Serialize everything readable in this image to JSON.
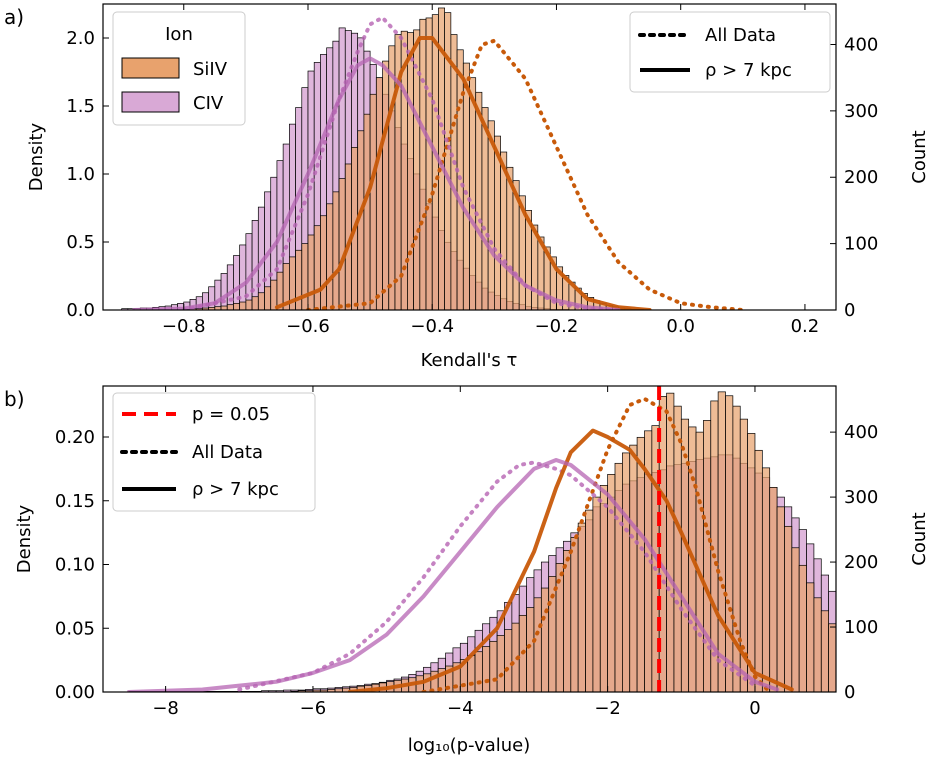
{
  "colors": {
    "siiv_fill": "#e8a26d",
    "siiv_line": "#c85a0a",
    "civ_fill": "#d9a9d6",
    "civ_line": "#b664b3",
    "overlap_fill": "#c9795a",
    "threshold": "#ff0000"
  },
  "chart_data": [
    {
      "type": "histogram",
      "panel_label": "a)",
      "xlabel": "Kendall's τ",
      "ylabel": "Density",
      "ylabel_right": "Count",
      "xlim": [
        -0.93,
        0.25
      ],
      "ylim": [
        0,
        2.25
      ],
      "ylim_right": [
        0,
        461
      ],
      "xticks": [
        "−0.8",
        "−0.6",
        "−0.4",
        "−0.2",
        "0.0",
        "0.2"
      ],
      "yticks": [
        "0.0",
        "0.5",
        "1.0",
        "1.5",
        "2.0"
      ],
      "yticks_right": [
        "0",
        "100",
        "200",
        "300",
        "400"
      ],
      "legend_ion": {
        "title": "Ion",
        "entries": [
          "SiIV",
          "CIV"
        ],
        "position": "top-left"
      },
      "legend_style": {
        "entries": [
          "All Data",
          "ρ > 7 kpc"
        ],
        "position": "top-right"
      },
      "series": [
        {
          "name": "SiIV",
          "kind": "histogram",
          "bin_start": -0.8,
          "bin_width": 0.01,
          "counts": [
            1,
            2,
            2,
            3,
            4,
            5,
            6,
            8,
            10,
            12,
            15,
            20,
            26,
            35,
            45,
            57,
            70,
            80,
            90,
            100,
            113,
            127,
            142,
            160,
            178,
            198,
            220,
            245,
            270,
            295,
            325,
            350,
            375,
            398,
            415,
            420,
            418,
            422,
            438,
            440,
            445,
            455,
            448,
            415,
            392,
            372,
            350,
            328,
            305,
            285,
            262,
            238,
            215,
            195,
            172,
            150,
            128,
            110,
            95,
            80,
            65,
            52,
            42,
            33,
            25,
            19,
            14,
            10,
            7,
            5,
            3,
            2,
            1,
            1,
            0
          ]
        },
        {
          "name": "CIV",
          "kind": "histogram",
          "bin_start": -0.9,
          "bin_width": 0.01,
          "counts": [
            2,
            2,
            2,
            3,
            3,
            4,
            5,
            6,
            8,
            10,
            12,
            16,
            20,
            26,
            35,
            45,
            55,
            68,
            82,
            98,
            115,
            135,
            155,
            178,
            200,
            225,
            250,
            280,
            305,
            335,
            360,
            373,
            385,
            395,
            405,
            425,
            421,
            417,
            410,
            390,
            370,
            350,
            325,
            300,
            275,
            250,
            228,
            205,
            182,
            160,
            140,
            120,
            102,
            88,
            75,
            63,
            52,
            42,
            33,
            27,
            22,
            17,
            13,
            10,
            8,
            5,
            4,
            3,
            2,
            1,
            1,
            1
          ]
        },
        {
          "name": "SiIV All Data",
          "kind": "kde",
          "style": "dotted",
          "x": [
            -0.6,
            -0.5,
            -0.45,
            -0.4,
            -0.35,
            -0.32,
            -0.3,
            -0.25,
            -0.2,
            -0.15,
            -0.1,
            -0.05,
            0.0,
            0.05,
            0.1
          ],
          "y": [
            0.0,
            0.05,
            0.25,
            0.85,
            1.6,
            1.95,
            1.98,
            1.7,
            1.2,
            0.7,
            0.35,
            0.15,
            0.05,
            0.02,
            0.0
          ]
        },
        {
          "name": "CIV All Data",
          "kind": "kde",
          "style": "dotted",
          "x": [
            -0.8,
            -0.7,
            -0.65,
            -0.6,
            -0.55,
            -0.52,
            -0.5,
            -0.48,
            -0.45,
            -0.4,
            -0.35,
            -0.3,
            -0.25,
            -0.2,
            -0.15,
            -0.1
          ],
          "y": [
            0.0,
            0.1,
            0.3,
            0.85,
            1.55,
            1.9,
            2.1,
            2.15,
            2.0,
            1.55,
            0.9,
            0.45,
            0.18,
            0.05,
            0.01,
            0.0
          ]
        },
        {
          "name": "SiIV ρ > 7 kpc",
          "kind": "kde",
          "style": "solid",
          "x": [
            -0.65,
            -0.58,
            -0.55,
            -0.5,
            -0.45,
            -0.42,
            -0.4,
            -0.35,
            -0.3,
            -0.25,
            -0.2,
            -0.15,
            -0.1,
            -0.05
          ],
          "y": [
            0.02,
            0.15,
            0.3,
            0.9,
            1.75,
            2.0,
            2.0,
            1.7,
            1.2,
            0.7,
            0.3,
            0.08,
            0.02,
            0.0
          ]
        },
        {
          "name": "CIV ρ > 7 kpc",
          "kind": "kde",
          "style": "solid",
          "x": [
            -0.88,
            -0.8,
            -0.75,
            -0.7,
            -0.65,
            -0.6,
            -0.55,
            -0.52,
            -0.5,
            -0.48,
            -0.45,
            -0.4,
            -0.35,
            -0.3,
            -0.25,
            -0.2,
            -0.15,
            -0.1
          ],
          "y": [
            0.0,
            0.01,
            0.05,
            0.2,
            0.5,
            1.0,
            1.55,
            1.8,
            1.85,
            1.8,
            1.65,
            1.2,
            0.75,
            0.4,
            0.18,
            0.07,
            0.02,
            0.0
          ]
        }
      ]
    },
    {
      "type": "histogram",
      "panel_label": "b)",
      "xlabel": "log₁₀(p-value)",
      "ylabel": "Density",
      "ylabel_right": "Count",
      "xlim": [
        -8.85,
        1.1
      ],
      "ylim": [
        0,
        0.24
      ],
      "ylim_right": [
        0,
        471
      ],
      "xticks": [
        "−8",
        "−6",
        "−4",
        "−2",
        "0"
      ],
      "yticks": [
        "0.00",
        "0.05",
        "0.10",
        "0.15",
        "0.20"
      ],
      "yticks_right": [
        "0",
        "100",
        "200",
        "300",
        "400"
      ],
      "threshold": {
        "x": -1.30103,
        "style": "dashed"
      },
      "legend_style": {
        "entries": [
          "p = 0.05",
          "All Data",
          "ρ > 7 kpc"
        ],
        "position": "top-left"
      },
      "series": [
        {
          "name": "SiIV",
          "kind": "histogram",
          "bin_start": -6.3,
          "bin_width": 0.1,
          "counts": [
            1,
            2,
            2,
            3,
            3,
            4,
            5,
            6,
            7,
            9,
            10,
            12,
            14,
            16,
            18,
            20,
            22,
            25,
            28,
            32,
            36,
            40,
            45,
            50,
            56,
            62,
            70,
            78,
            87,
            96,
            106,
            118,
            130,
            145,
            160,
            178,
            198,
            218,
            238,
            260,
            280,
            300,
            318,
            335,
            352,
            368,
            380,
            392,
            402,
            410,
            455,
            460,
            440,
            420,
            408,
            400,
            418,
            448,
            462,
            456,
            440,
            420,
            398,
            372,
            345,
            315,
            285,
            255,
            222,
            195,
            168,
            145,
            125,
            105,
            85,
            65,
            45,
            28,
            16,
            10,
            6,
            3,
            2,
            1,
            1,
            0
          ]
        },
        {
          "name": "CIV",
          "kind": "histogram",
          "bin_start": -8.5,
          "bin_width": 0.1,
          "counts": [
            1,
            1,
            1,
            1,
            1,
            1,
            1,
            1,
            1,
            1,
            1,
            1,
            1,
            1,
            1,
            1,
            1,
            1,
            2,
            2,
            2,
            3,
            3,
            3,
            4,
            5,
            5,
            6,
            7,
            8,
            9,
            10,
            12,
            13,
            15,
            18,
            20,
            23,
            27,
            32,
            38,
            45,
            52,
            60,
            68,
            75,
            85,
            95,
            105,
            115,
            125,
            138,
            150,
            163,
            176,
            188,
            200,
            210,
            222,
            232,
            245,
            255,
            265,
            285,
            290,
            300,
            310,
            320,
            325,
            330,
            335,
            338,
            342,
            348,
            350,
            352,
            355,
            358,
            360,
            362,
            365,
            365,
            360,
            352,
            345,
            337,
            330,
            315,
            300,
            285,
            268,
            250,
            228,
            205,
            180,
            155,
            130,
            110,
            95,
            80,
            65,
            52,
            42,
            33,
            25,
            18,
            12,
            8,
            5,
            3,
            2,
            1,
            1,
            0
          ]
        },
        {
          "name": "SiIV All Data",
          "kind": "kde",
          "style": "dotted",
          "x": [
            -4.5,
            -3.5,
            -3.0,
            -2.5,
            -2.0,
            -1.7,
            -1.5,
            -1.2,
            -1.0,
            -0.8,
            -0.5,
            -0.2,
            0.0,
            0.2
          ],
          "y": [
            0.0,
            0.01,
            0.04,
            0.11,
            0.19,
            0.225,
            0.23,
            0.22,
            0.195,
            0.16,
            0.095,
            0.04,
            0.012,
            0.0
          ]
        },
        {
          "name": "CIV All Data",
          "kind": "kde",
          "style": "dotted",
          "x": [
            -7.0,
            -6.0,
            -5.5,
            -5.0,
            -4.5,
            -4.0,
            -3.5,
            -3.2,
            -3.0,
            -2.7,
            -2.5,
            -2.0,
            -1.5,
            -1.0,
            -0.5,
            0.0
          ],
          "y": [
            0.002,
            0.015,
            0.03,
            0.055,
            0.09,
            0.13,
            0.165,
            0.178,
            0.18,
            0.175,
            0.17,
            0.145,
            0.11,
            0.065,
            0.025,
            0.005
          ]
        },
        {
          "name": "SiIV ρ > 7 kpc",
          "kind": "kde",
          "style": "solid",
          "x": [
            -5.5,
            -5.0,
            -4.5,
            -4.0,
            -3.5,
            -3.0,
            -2.7,
            -2.5,
            -2.2,
            -2.0,
            -1.7,
            -1.5,
            -1.2,
            -1.0,
            -0.5,
            0.0,
            0.5
          ],
          "y": [
            0.0,
            0.003,
            0.008,
            0.02,
            0.05,
            0.11,
            0.16,
            0.188,
            0.205,
            0.2,
            0.19,
            0.175,
            0.15,
            0.125,
            0.06,
            0.015,
            0.002
          ]
        },
        {
          "name": "CIV ρ > 7 kpc",
          "kind": "kde",
          "style": "solid",
          "x": [
            -8.5,
            -7.5,
            -7.0,
            -6.5,
            -6.0,
            -5.5,
            -5.0,
            -4.5,
            -4.0,
            -3.5,
            -3.0,
            -2.7,
            -2.5,
            -2.0,
            -1.5,
            -1.0,
            -0.5,
            0.0,
            0.3
          ],
          "y": [
            0.0,
            0.002,
            0.005,
            0.008,
            0.015,
            0.025,
            0.045,
            0.075,
            0.11,
            0.145,
            0.175,
            0.182,
            0.178,
            0.155,
            0.12,
            0.075,
            0.03,
            0.008,
            0.002
          ]
        }
      ]
    }
  ]
}
